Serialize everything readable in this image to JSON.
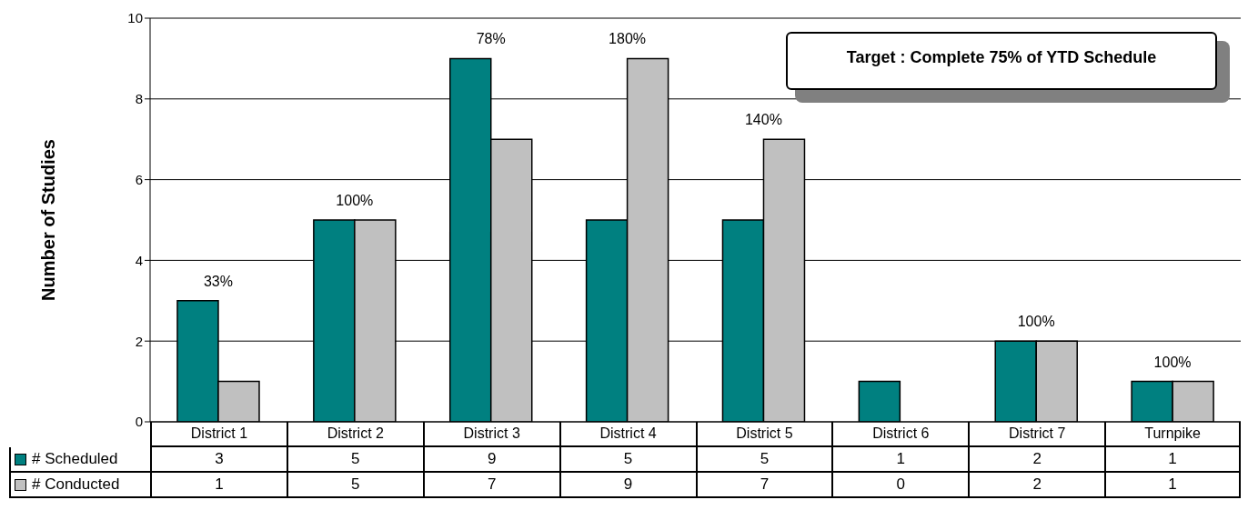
{
  "chart_data": {
    "type": "bar",
    "ylabel": "Number of Studies",
    "categories": [
      "District 1",
      "District 2",
      "District 3",
      "District 4",
      "District 5",
      "District 6",
      "District 7",
      "Turnpike"
    ],
    "series": [
      {
        "name": "# Scheduled",
        "color": "#008080",
        "values": [
          3,
          5,
          9,
          5,
          5,
          1,
          2,
          1
        ]
      },
      {
        "name": "# Conducted",
        "color": "#c0c0c0",
        "values": [
          1,
          5,
          7,
          9,
          7,
          0,
          2,
          1
        ]
      }
    ],
    "ylim": [
      0,
      10
    ],
    "yticks": [
      0,
      2,
      4,
      6,
      8,
      10
    ],
    "grid": "y",
    "legend": "bottom",
    "data_labels": true,
    "annotations": [
      "Target : Complete 75% of YTD Schedule",
      {
        "text": "33%",
        "x": "District 1",
        "y": 3
      },
      {
        "text": "100%",
        "x": "District 2",
        "y": 5
      },
      {
        "text": "78%",
        "x": "District 3",
        "y": 9
      },
      {
        "text": "180%",
        "x": "District 4",
        "y": 9
      },
      {
        "text": "140%",
        "x": "District 5",
        "y": 7
      },
      {
        "text": "100%",
        "x": "District 7",
        "y": 2
      },
      {
        "text": "100%",
        "x": "Turnpike",
        "y": 1
      }
    ]
  }
}
